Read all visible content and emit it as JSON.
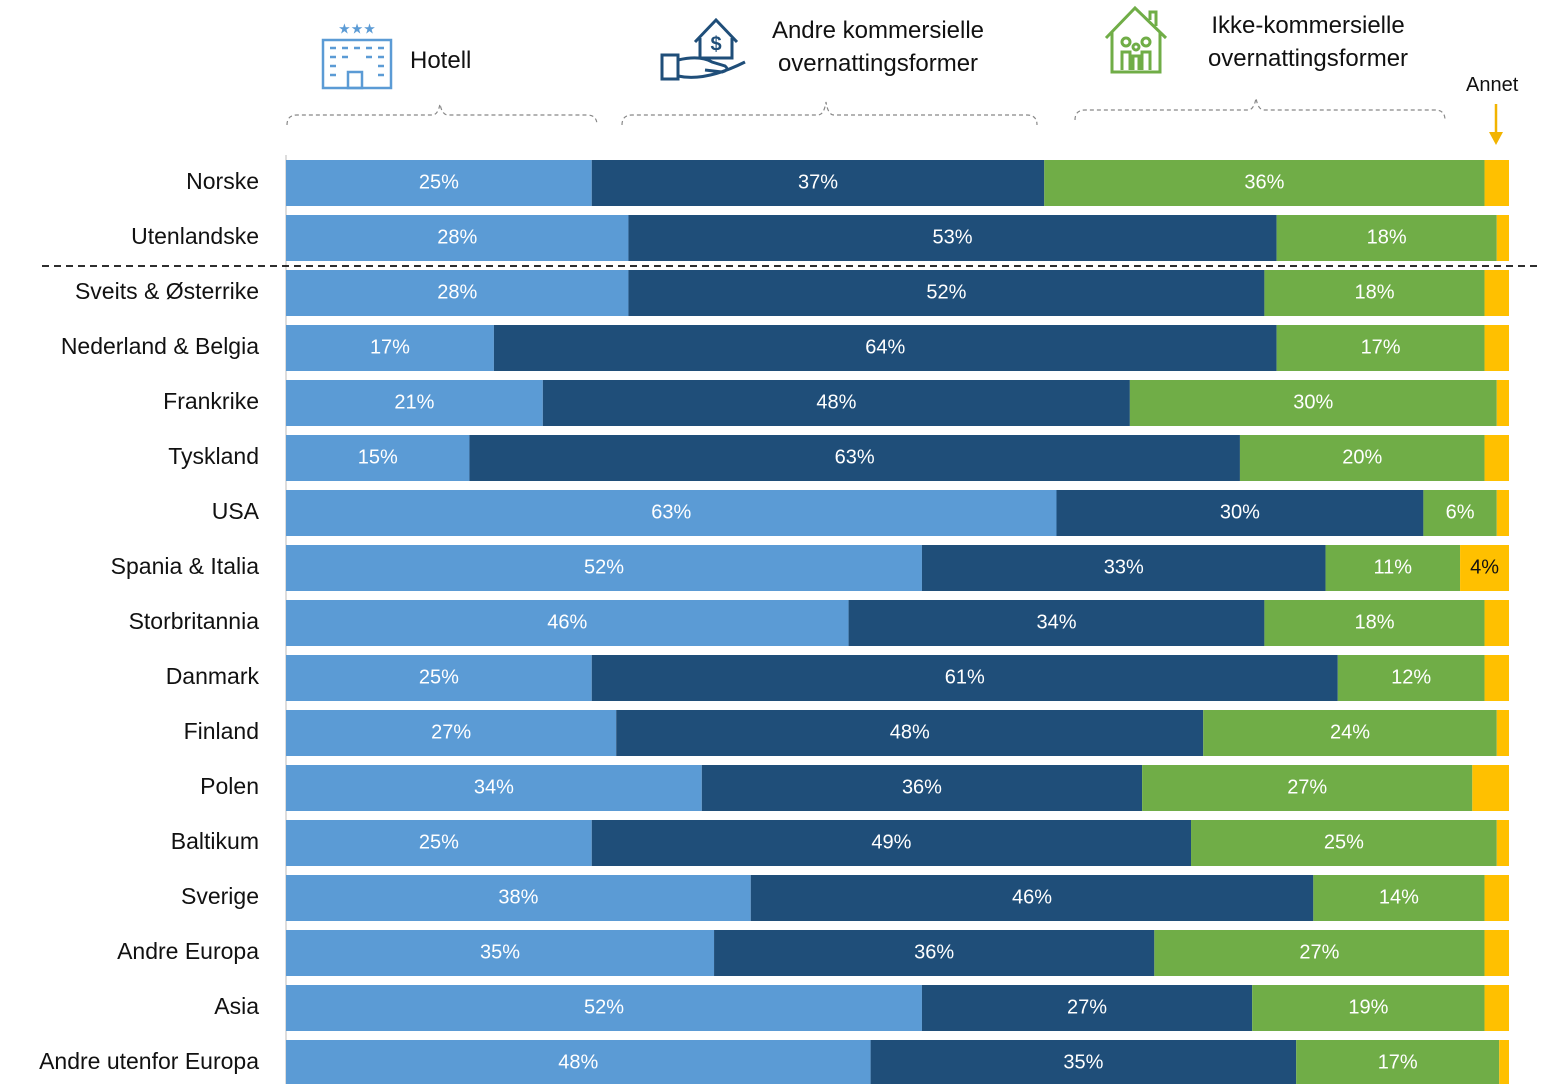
{
  "chart_data": {
    "type": "stacked-bar-horizontal",
    "categories": [
      "Norske",
      "Utenlandske",
      "Sveits & Østerrike",
      "Nederland & Belgia",
      "Frankrike",
      "Tyskland",
      "USA",
      "Spania & Italia",
      "Storbritannia",
      "Danmark",
      "Finland",
      "Polen",
      "Baltikum",
      "Sverige",
      "Andre Europa",
      "Asia",
      "Andre utenfor Europa"
    ],
    "xlim": [
      0,
      100
    ],
    "series": [
      {
        "name": "Hotell",
        "color": "#5b9bd5",
        "label_color": "#ffffff",
        "values": [
          25,
          28,
          28,
          17,
          21,
          15,
          63,
          52,
          46,
          25,
          27,
          34,
          25,
          38,
          35,
          52,
          47.8
        ],
        "value_labels": [
          "25%",
          "28%",
          "28%",
          "17%",
          "21%",
          "15%",
          "63%",
          "52%",
          "46%",
          "25%",
          "27%",
          "34%",
          "25%",
          "38%",
          "35%",
          "52%",
          "48%"
        ]
      },
      {
        "name": "Andre kommersielle overnattingsformer",
        "color": "#1f4e79",
        "label_color": "#ffffff",
        "values": [
          37,
          53,
          52,
          64,
          48,
          63,
          30,
          33,
          34,
          61,
          48,
          36,
          49,
          46,
          36,
          27,
          34.8
        ],
        "value_labels": [
          "37%",
          "53%",
          "52%",
          "64%",
          "48%",
          "63%",
          "30%",
          "33%",
          "34%",
          "61%",
          "48%",
          "36%",
          "49%",
          "46%",
          "36%",
          "27%",
          "35%"
        ]
      },
      {
        "name": "Ikke-kommersielle overnattingsformer",
        "color": "#70ad47",
        "label_color": "#ffffff",
        "values": [
          36,
          18,
          18,
          17,
          30,
          20,
          6,
          11,
          18,
          12,
          24,
          27,
          25,
          14,
          27,
          19,
          16.6
        ],
        "value_labels": [
          "36%",
          "18%",
          "18%",
          "17%",
          "30%",
          "20%",
          "6%",
          "11%",
          "18%",
          "12%",
          "24%",
          "27%",
          "25%",
          "14%",
          "27%",
          "19%",
          "17%"
        ]
      },
      {
        "name": "Annet",
        "color": "#ffc000",
        "label_color": "#111111",
        "values": [
          2,
          1,
          2,
          2,
          1,
          2,
          1,
          4,
          2,
          2,
          1,
          3,
          1,
          2,
          2,
          2,
          0.8
        ],
        "value_labels": [
          null,
          null,
          null,
          null,
          null,
          null,
          null,
          "4%",
          null,
          null,
          null,
          null,
          null,
          null,
          null,
          null,
          null
        ]
      }
    ]
  }
}
